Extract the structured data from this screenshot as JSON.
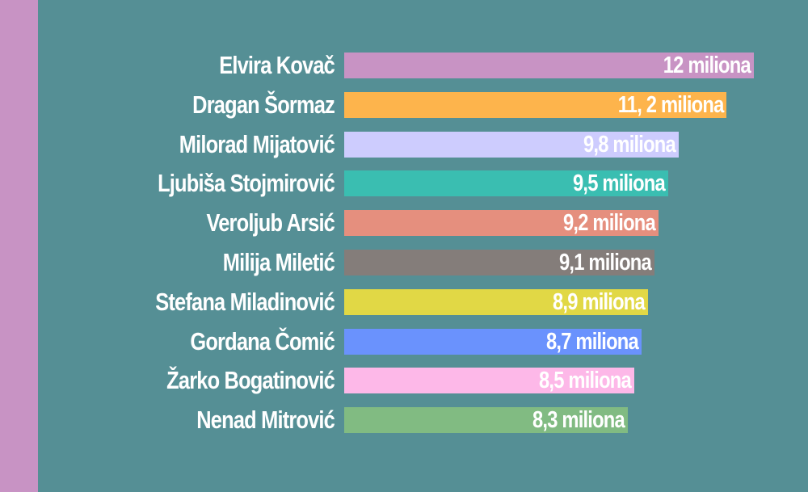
{
  "theme": {
    "background": "#558f95",
    "stripe_color": "#c893c4",
    "text_color": "#ffffff"
  },
  "chart_data": {
    "type": "bar",
    "orientation": "horizontal",
    "categories": [
      "Elvira Kovač",
      "Dragan Šormaz",
      "Milorad Mijatović",
      "Ljubiša Stojmirović",
      "Veroljub Arsić",
      "Milija Miletić",
      "Stefana Miladinović",
      "Gordana Čomić",
      "Žarko Bogatinović",
      "Nenad Mitrović"
    ],
    "values": [
      12,
      11.2,
      9.8,
      9.5,
      9.2,
      9.1,
      8.9,
      8.7,
      8.5,
      8.3
    ],
    "data_labels": [
      "12 miliona",
      "11, 2 miliona",
      "9,8 miliona",
      "9,5 miliona",
      "9,2 miliona",
      "9,1 miliona",
      "8,9 miliona",
      "8,7 miliona",
      "8,5 miliona",
      "8,3 miliona"
    ],
    "colors": [
      "#c893c4",
      "#fdb44c",
      "#cdccfe",
      "#3abeb1",
      "#e58f7e",
      "#847d7a",
      "#e1d845",
      "#6a92fd",
      "#fdb8e8",
      "#81bb82"
    ],
    "title": "",
    "xlabel": "",
    "ylabel": "",
    "grid": false,
    "legend": false
  }
}
